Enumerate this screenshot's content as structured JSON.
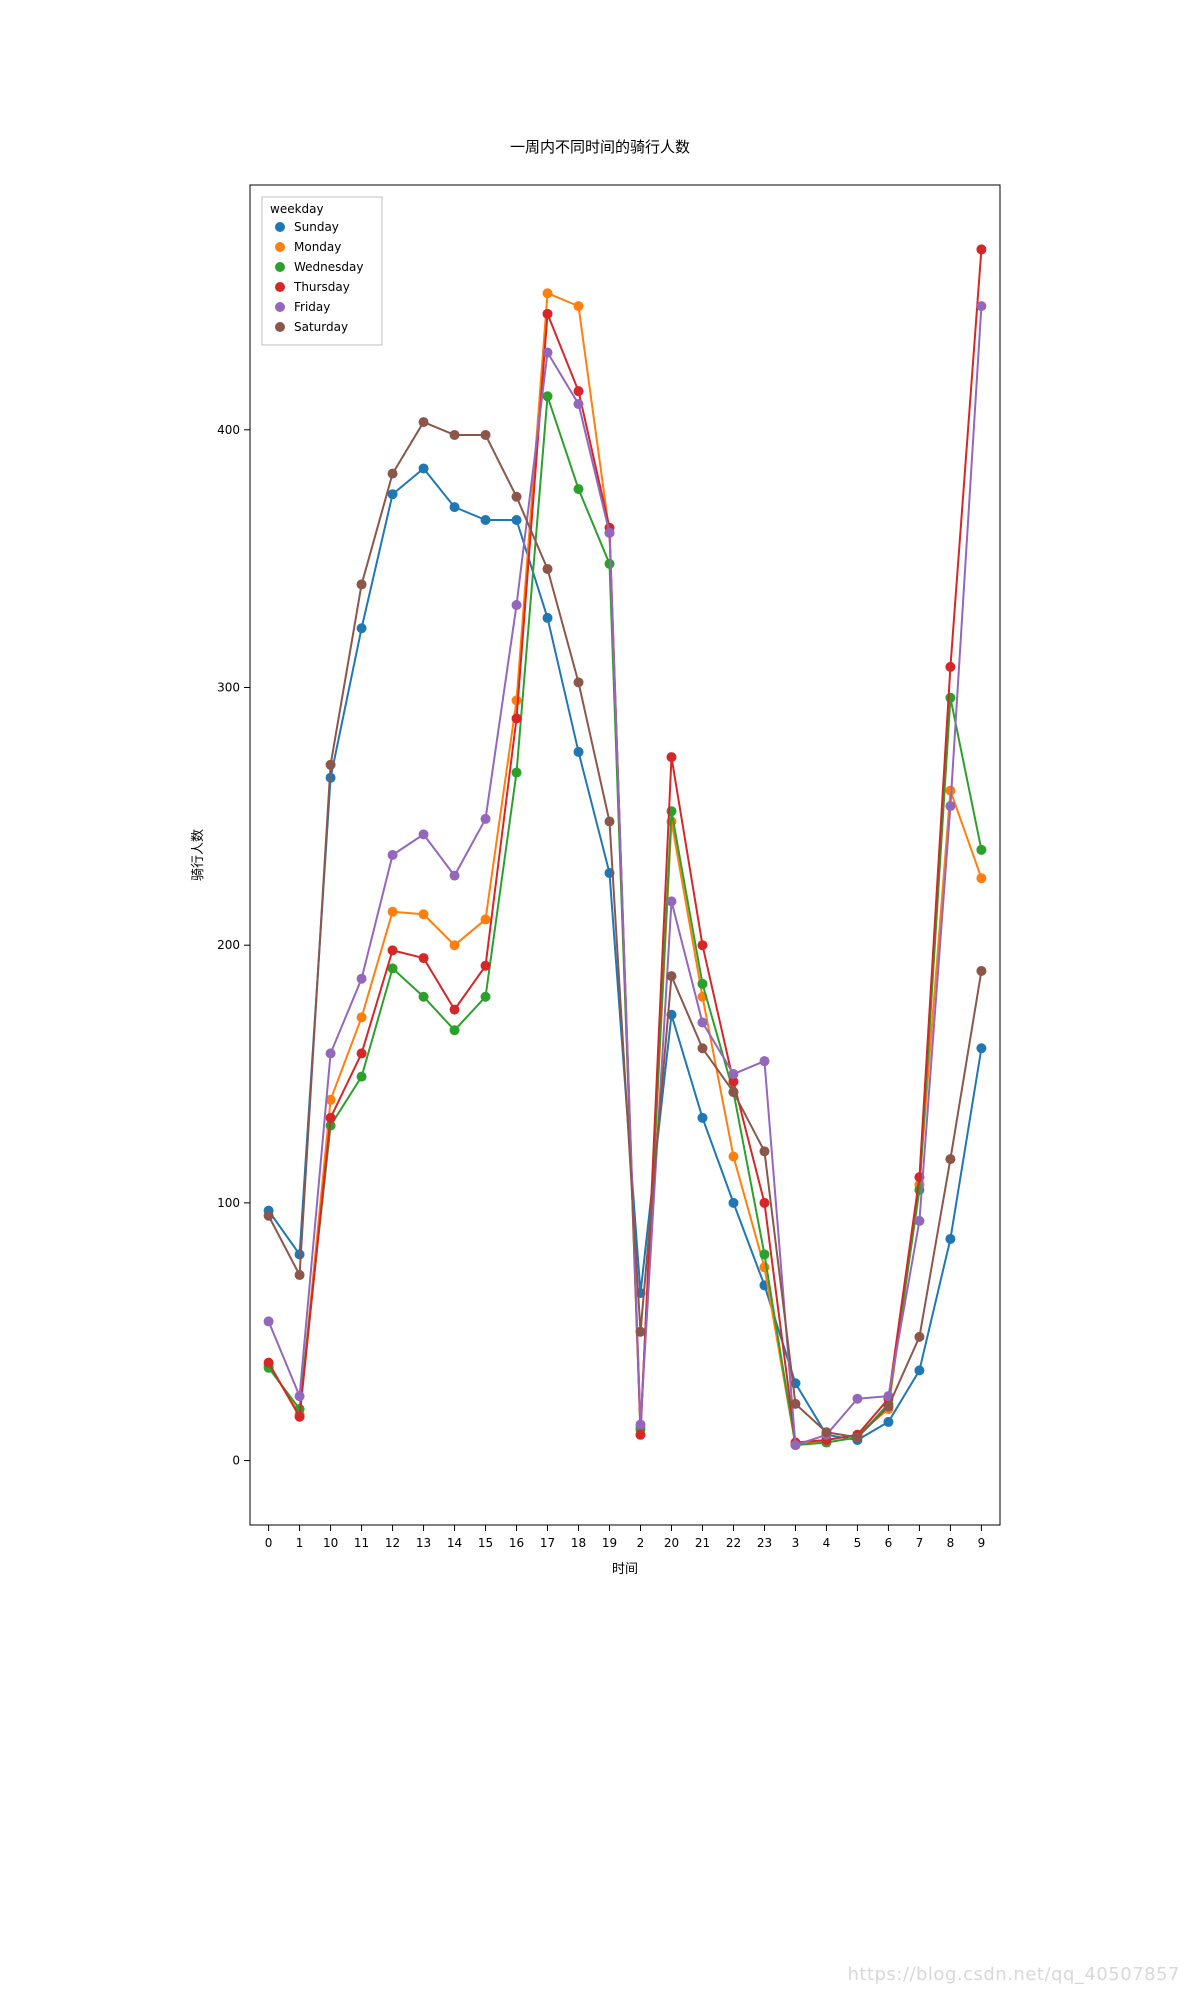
{
  "chart": {
    "type": "line",
    "title": "一周内不同时间的骑行人数",
    "title_fontsize": 15,
    "xlabel": "时间",
    "ylabel": "骑行人数",
    "label_fontsize": 13,
    "tick_fontsize": 12,
    "background_color": "#ffffff",
    "border_color": "#000000",
    "axis_text_color": "#000000",
    "categories": [
      "0",
      "1",
      "10",
      "11",
      "12",
      "13",
      "14",
      "15",
      "16",
      "17",
      "18",
      "19",
      "2",
      "20",
      "21",
      "22",
      "23",
      "3",
      "4",
      "5",
      "6",
      "7",
      "8",
      "9"
    ],
    "xlim": [
      -0.6,
      23.6
    ],
    "ylim": [
      -25,
      495
    ],
    "yticks": [
      0,
      100,
      200,
      300,
      400
    ],
    "legend": {
      "title": "weekday",
      "position": "upper-left",
      "fontsize": 12,
      "title_fontsize": 12,
      "frame_color": "#bfbfbf",
      "bg_color": "#ffffff"
    },
    "marker": {
      "shape": "circle",
      "size": 5
    },
    "line_width": 2,
    "series": [
      {
        "name": "Sunday",
        "color": "#1f77b4",
        "values": [
          97,
          80,
          265,
          323,
          375,
          385,
          370,
          365,
          365,
          327,
          275,
          228,
          65,
          173,
          133,
          100,
          68,
          30,
          10,
          8,
          15,
          35,
          86,
          160
        ]
      },
      {
        "name": "Monday",
        "color": "#ff7f0e",
        "values": [
          37,
          18,
          140,
          172,
          213,
          212,
          200,
          210,
          295,
          453,
          448,
          360,
          13,
          248,
          180,
          118,
          75,
          6,
          8,
          10,
          20,
          107,
          260,
          226
        ]
      },
      {
        "name": "Wednesday",
        "color": "#2ca02c",
        "values": [
          36,
          20,
          130,
          149,
          191,
          180,
          167,
          180,
          267,
          413,
          377,
          348,
          12,
          252,
          185,
          143,
          80,
          6,
          7,
          9,
          22,
          105,
          296,
          237
        ]
      },
      {
        "name": "Thursday",
        "color": "#d62728",
        "values": [
          38,
          17,
          133,
          158,
          198,
          195,
          175,
          192,
          288,
          445,
          415,
          362,
          10,
          273,
          200,
          147,
          100,
          7,
          8,
          10,
          24,
          110,
          308,
          470
        ]
      },
      {
        "name": "Friday",
        "color": "#9467bd",
        "values": [
          54,
          25,
          158,
          187,
          235,
          243,
          227,
          249,
          332,
          430,
          410,
          360,
          14,
          217,
          170,
          150,
          155,
          6,
          10,
          24,
          25,
          93,
          254,
          448
        ]
      },
      {
        "name": "Saturday",
        "color": "#8c564b",
        "values": [
          95,
          72,
          270,
          340,
          383,
          403,
          398,
          398,
          374,
          346,
          302,
          248,
          50,
          188,
          160,
          143,
          120,
          22,
          11,
          9,
          21,
          48,
          117,
          190
        ]
      }
    ]
  },
  "watermark": "https://blog.csdn.net/qq_40507857"
}
